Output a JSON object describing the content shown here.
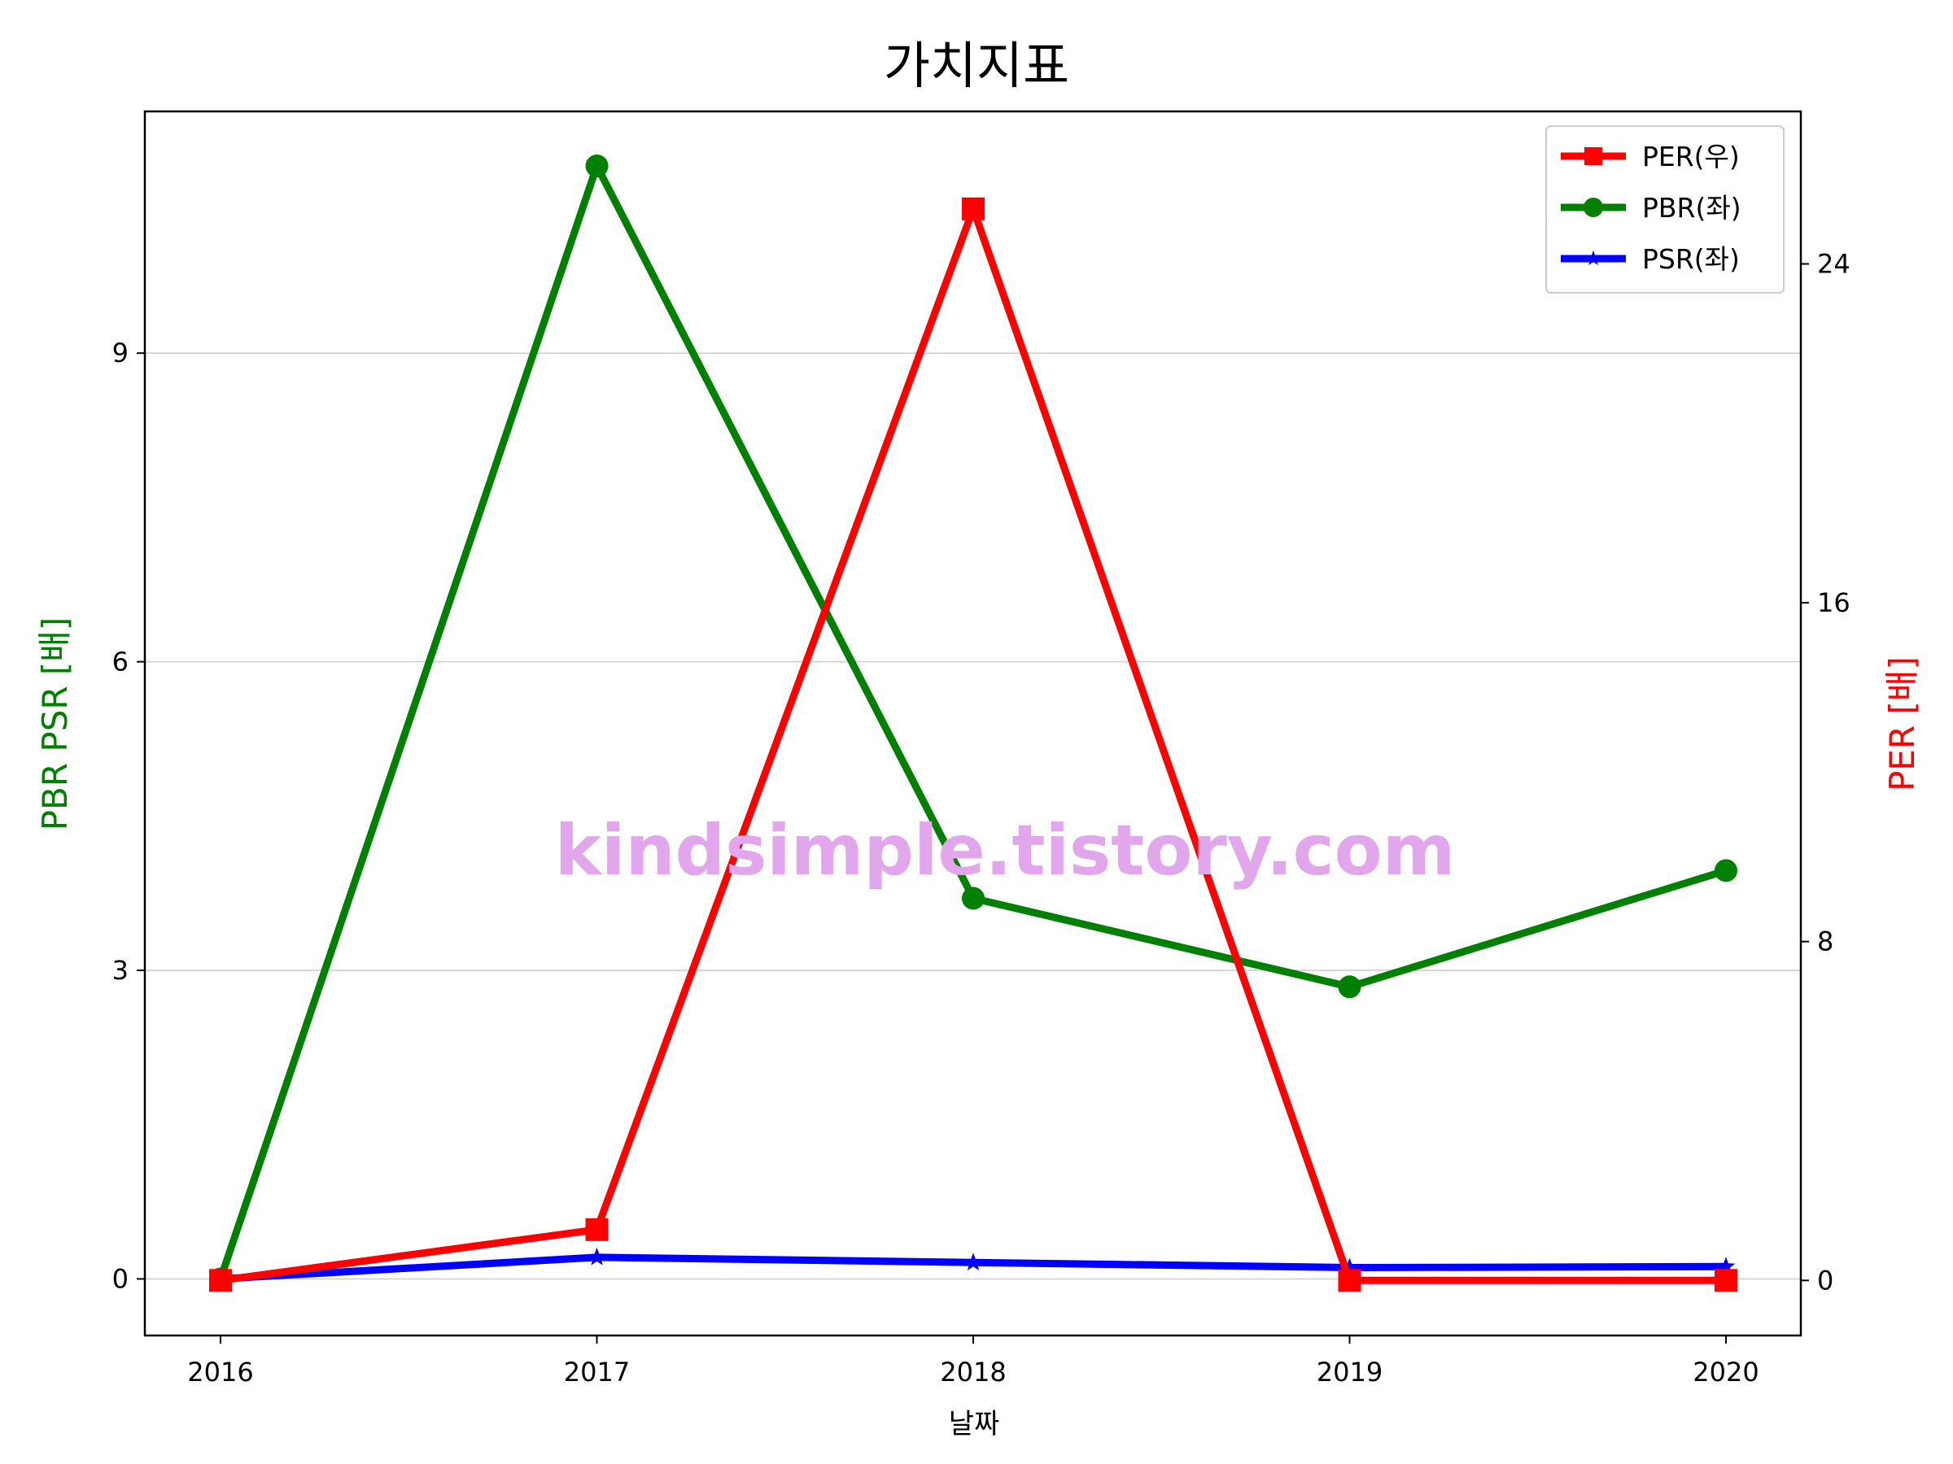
{
  "chart_data": {
    "type": "line",
    "title": "가치지표",
    "xlabel": "날짜",
    "ylabel_left": "PBR PSR [배]",
    "ylabel_right": "PER [배]",
    "categories": [
      "2016",
      "2017",
      "2018",
      "2019",
      "2020"
    ],
    "left_axis": {
      "ylim": [
        -0.55,
        11.35
      ],
      "ticks": [
        0,
        3,
        6,
        9
      ],
      "tick_labels": [
        "0",
        "3",
        "6",
        "9"
      ]
    },
    "right_axis": {
      "ylim": [
        -1.3,
        27.6
      ],
      "ticks": [
        0,
        8,
        16,
        24
      ],
      "tick_labels": [
        "0",
        "8",
        "16",
        "24"
      ]
    },
    "grid": "horizontal",
    "legend_position": "top-right",
    "series": [
      {
        "name": "PER(우)",
        "axis": "right",
        "color": "#ff0000",
        "marker": "square",
        "values": [
          0,
          1.2,
          25.3,
          0,
          0
        ]
      },
      {
        "name": "PBR(좌)",
        "axis": "left",
        "color": "#008000",
        "marker": "circle",
        "values": [
          0,
          10.82,
          3.7,
          2.84,
          3.97
        ]
      },
      {
        "name": "PSR(좌)",
        "axis": "left",
        "color": "#0000ff",
        "marker": "star",
        "values": [
          0,
          0.21,
          0.16,
          0.11,
          0.12
        ]
      }
    ],
    "watermark": {
      "text": "kindsimple.tistory.com",
      "color": "#e2a6ec"
    }
  }
}
